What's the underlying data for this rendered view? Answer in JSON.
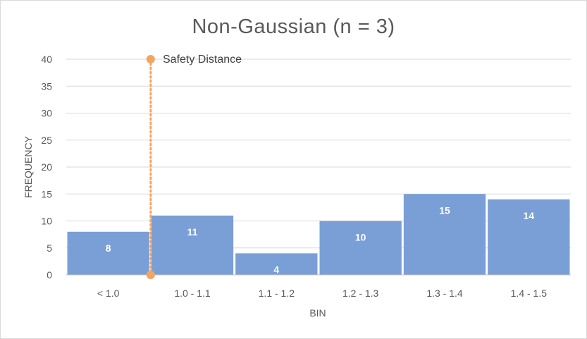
{
  "chart_data": {
    "type": "bar",
    "title": "Non-Gaussian (n = 3)",
    "xlabel": "BIN",
    "ylabel": "FREQUENCY",
    "categories": [
      "< 1.0",
      "1.0 - 1.1",
      "1.1 - 1.2",
      "1.2 - 1.3",
      "1.3 - 1.4",
      "1.4 - 1.5"
    ],
    "values": [
      8,
      11,
      4,
      10,
      15,
      14
    ],
    "ylim": [
      0,
      40
    ],
    "yticks": [
      0,
      5,
      10,
      15,
      20,
      25,
      30,
      35,
      40
    ],
    "grid": true,
    "legend": "none",
    "bar_color": "#7a9fd6",
    "annotation": {
      "label": "Safety Distance",
      "x_position": "boundary between < 1.0 and 1.0 - 1.1",
      "y_range": [
        0,
        40
      ],
      "color": "#f4a361",
      "style": "dotted"
    }
  }
}
